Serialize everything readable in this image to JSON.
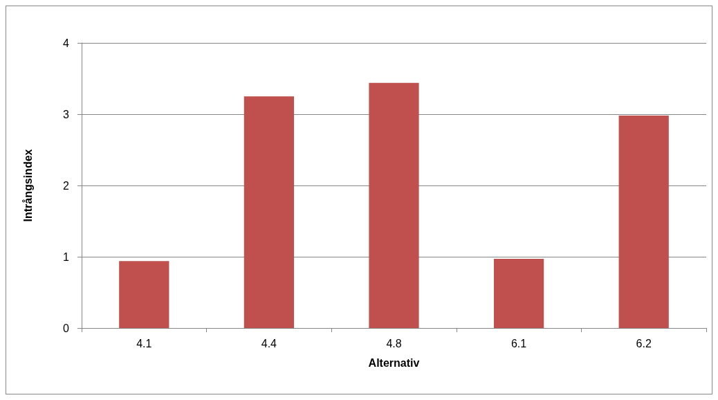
{
  "chart_data": {
    "type": "bar",
    "xlabel": "Alternativ",
    "ylabel": "Intrångsindex",
    "categories": [
      "4.1",
      "4.4",
      "4.8",
      "6.1",
      "6.2"
    ],
    "values": [
      0.94,
      3.25,
      3.44,
      0.97,
      2.98
    ],
    "color": "#c0504d",
    "ylim": [
      0,
      4
    ],
    "yticks": [
      0,
      1,
      2,
      3,
      4
    ],
    "grid": "y"
  }
}
